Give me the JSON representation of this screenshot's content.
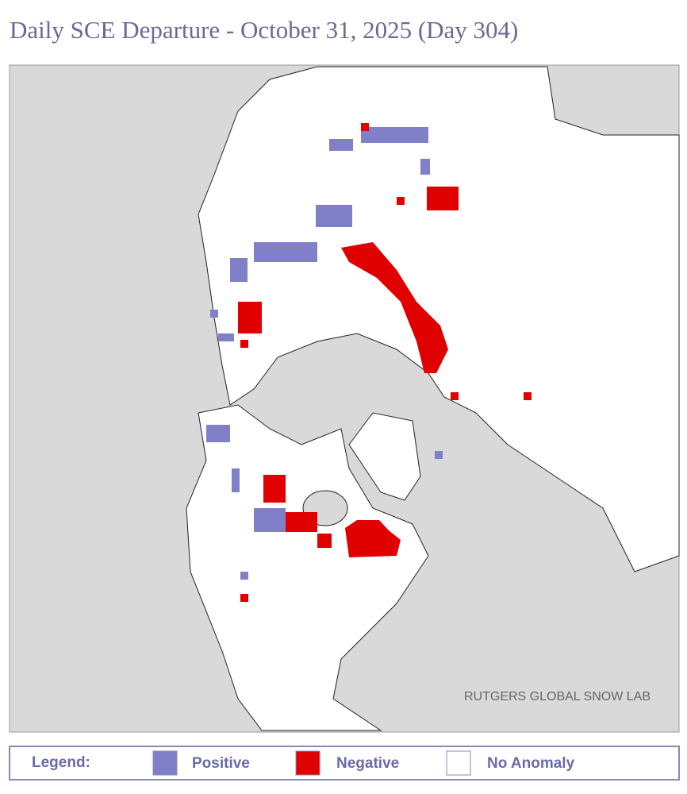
{
  "header": {
    "title": "Daily SCE Departure - October 31, 2025 (Day 304)"
  },
  "map": {
    "credit": "RUTGERS GLOBAL SNOW LAB"
  },
  "legend": {
    "label": "Legend:",
    "items": [
      {
        "label": "Positive",
        "color": "#8080c8"
      },
      {
        "label": "Negative",
        "color": "#e00000"
      },
      {
        "label": "No Anomaly",
        "color": "#ffffff"
      }
    ]
  }
}
